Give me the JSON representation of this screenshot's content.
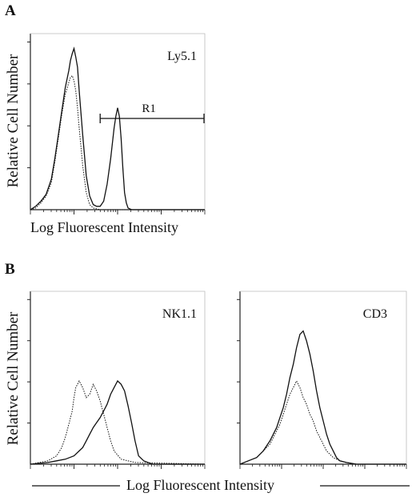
{
  "panel_a": {
    "letter": "A",
    "ylabel": "Relative Cell Number",
    "xlabel": "Log Fluorescent Intensity"
  },
  "panel_b": {
    "letter": "B",
    "ylabel": "Relative Cell Number",
    "xlabel": "Log Fluorescent Intensity"
  },
  "chart_data": [
    {
      "type": "line",
      "panel": "A",
      "title": "Ly5.1",
      "xlabel": "Log Fluorescent Intensity",
      "ylabel": "Relative Cell Number",
      "xlim": [
        0,
        100
      ],
      "ylim": [
        0,
        100
      ],
      "gate": {
        "label": "R1",
        "x_start": 40,
        "x_end": 100
      },
      "series": [
        {
          "style": "solid",
          "x": [
            0,
            3,
            6,
            9,
            12,
            14,
            16,
            18,
            20,
            22,
            23,
            24,
            25,
            26,
            27,
            28,
            30,
            32,
            34,
            36,
            38,
            40,
            42,
            44,
            46,
            48,
            49,
            50,
            51,
            52,
            53,
            54,
            55,
            56,
            58,
            60,
            65,
            70,
            80,
            100
          ],
          "y": [
            0,
            2,
            5,
            9,
            18,
            30,
            44,
            58,
            72,
            82,
            88,
            92,
            95,
            90,
            84,
            70,
            44,
            20,
            8,
            3,
            2,
            2,
            5,
            15,
            30,
            48,
            55,
            60,
            55,
            42,
            25,
            10,
            4,
            1,
            0,
            0,
            0,
            0,
            0,
            0
          ]
        },
        {
          "style": "dotted",
          "x": [
            0,
            3,
            6,
            9,
            12,
            14,
            16,
            18,
            20,
            22,
            23,
            24,
            25,
            26,
            27,
            28,
            30,
            32,
            34,
            36,
            40,
            100
          ],
          "y": [
            0,
            1,
            4,
            8,
            16,
            28,
            42,
            56,
            68,
            75,
            78,
            79,
            76,
            70,
            60,
            48,
            26,
            10,
            3,
            1,
            0,
            0
          ]
        }
      ]
    },
    {
      "type": "line",
      "panel": "B",
      "title": "NK1.1",
      "xlabel": "Log Fluorescent Intensity",
      "ylabel": "Relative Cell Number",
      "xlim": [
        0,
        100
      ],
      "ylim": [
        0,
        100
      ],
      "series": [
        {
          "style": "solid",
          "x": [
            0,
            10,
            15,
            20,
            25,
            28,
            30,
            32,
            34,
            35,
            36,
            38,
            40,
            42,
            44,
            46,
            48,
            50,
            52,
            54,
            56,
            58,
            60,
            62,
            65,
            70,
            80,
            100
          ],
          "y": [
            0,
            1,
            2,
            3,
            5,
            8,
            10,
            14,
            18,
            20,
            22,
            25,
            28,
            32,
            36,
            42,
            46,
            50,
            48,
            44,
            35,
            25,
            14,
            5,
            2,
            0,
            0,
            0
          ]
        },
        {
          "style": "dotted",
          "x": [
            0,
            10,
            15,
            18,
            20,
            22,
            24,
            25,
            26,
            28,
            30,
            32,
            34,
            36,
            38,
            40,
            42,
            44,
            46,
            48,
            52,
            60,
            100
          ],
          "y": [
            0,
            2,
            5,
            10,
            16,
            24,
            32,
            40,
            46,
            50,
            46,
            40,
            42,
            48,
            44,
            38,
            30,
            22,
            14,
            8,
            3,
            1,
            0
          ]
        }
      ]
    },
    {
      "type": "line",
      "panel": "B",
      "title": "CD3",
      "xlabel": "Log Fluorescent Intensity",
      "ylabel": "Relative Cell Number",
      "xlim": [
        0,
        100
      ],
      "ylim": [
        0,
        100
      ],
      "series": [
        {
          "style": "solid",
          "x": [
            0,
            5,
            10,
            14,
            18,
            20,
            22,
            24,
            26,
            28,
            30,
            32,
            34,
            36,
            38,
            40,
            42,
            44,
            46,
            48,
            50,
            52,
            54,
            56,
            58,
            60,
            64,
            70,
            80,
            100
          ],
          "y": [
            0,
            2,
            4,
            8,
            14,
            18,
            22,
            28,
            34,
            42,
            52,
            60,
            70,
            78,
            80,
            74,
            66,
            56,
            44,
            34,
            26,
            18,
            12,
            8,
            4,
            2,
            1,
            0,
            0,
            0
          ]
        },
        {
          "style": "dotted",
          "x": [
            0,
            5,
            10,
            14,
            18,
            20,
            22,
            24,
            26,
            28,
            30,
            32,
            34,
            36,
            38,
            40,
            42,
            44,
            46,
            48,
            50,
            52,
            54,
            56,
            60,
            64,
            70,
            100
          ],
          "y": [
            0,
            2,
            4,
            8,
            12,
            16,
            20,
            24,
            30,
            36,
            42,
            46,
            50,
            46,
            40,
            36,
            30,
            26,
            20,
            16,
            12,
            8,
            6,
            4,
            2,
            1,
            0,
            0
          ]
        }
      ]
    }
  ]
}
